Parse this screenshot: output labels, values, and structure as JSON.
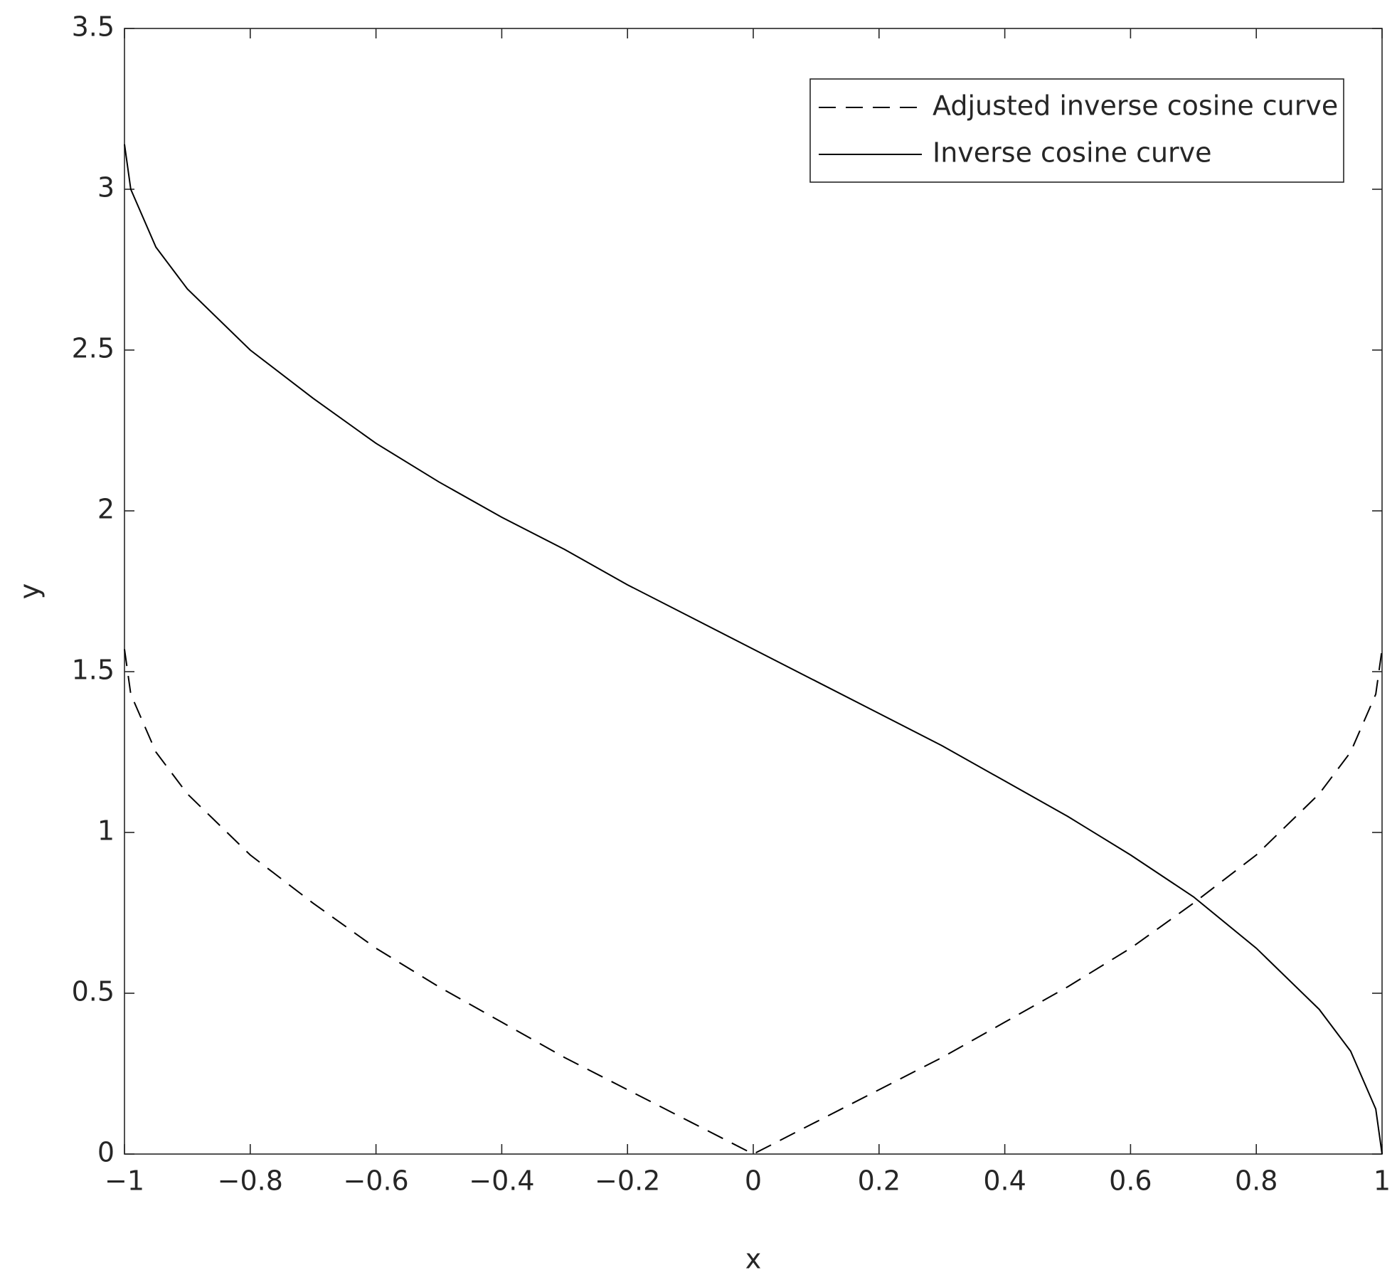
{
  "chart_data": {
    "type": "line",
    "xlabel": "x",
    "ylabel": "y",
    "x": [
      -1,
      -0.99,
      -0.95,
      -0.9,
      -0.8,
      -0.7,
      -0.6,
      -0.5,
      -0.4,
      -0.3,
      -0.2,
      -0.1,
      0,
      0.1,
      0.2,
      0.3,
      0.4,
      0.5,
      0.6,
      0.7,
      0.8,
      0.9,
      0.95,
      0.99,
      1
    ],
    "series": [
      {
        "name": "Adjusted inverse cosine curve",
        "color": "#000000",
        "linestyle": "dashed",
        "values": [
          1.57,
          1.43,
          1.25,
          1.12,
          0.93,
          0.78,
          0.64,
          0.52,
          0.41,
          0.3,
          0.2,
          0.1,
          0,
          0.1,
          0.2,
          0.3,
          0.41,
          0.52,
          0.64,
          0.78,
          0.93,
          1.12,
          1.25,
          1.43,
          1.57
        ]
      },
      {
        "name": "Inverse cosine curve",
        "color": "#000000",
        "linestyle": "solid",
        "values": [
          3.14,
          3.0,
          2.82,
          2.69,
          2.5,
          2.35,
          2.21,
          2.09,
          1.98,
          1.88,
          1.77,
          1.67,
          1.57,
          1.47,
          1.37,
          1.27,
          1.16,
          1.05,
          0.93,
          0.8,
          0.64,
          0.45,
          0.32,
          0.14,
          0
        ]
      }
    ],
    "xlim": [
      -1,
      1
    ],
    "xticks": [
      {
        "value": -1,
        "label": "−1"
      },
      {
        "value": -0.8,
        "label": "−0.8"
      },
      {
        "value": -0.6,
        "label": "−0.6"
      },
      {
        "value": -0.4,
        "label": "−0.4"
      },
      {
        "value": -0.2,
        "label": "−0.2"
      },
      0,
      0.2,
      0.4,
      0.6,
      0.8,
      1
    ],
    "ylim": [
      0,
      3.5
    ],
    "yticks": [
      0,
      0.5,
      1,
      1.5,
      2,
      2.5,
      3,
      3.5
    ],
    "grid": false,
    "legend": "upper-right"
  }
}
